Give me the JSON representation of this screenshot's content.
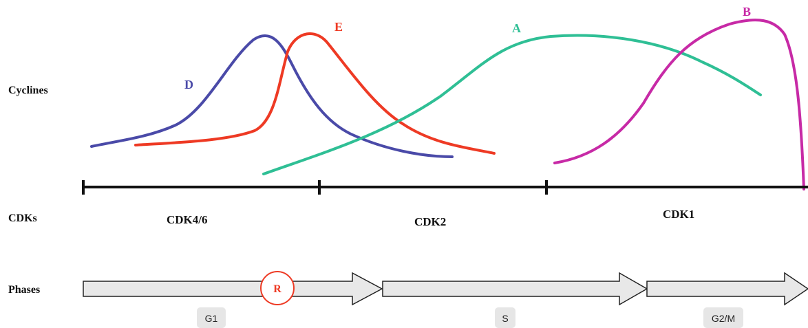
{
  "rows": {
    "cyclines": "Cyclines",
    "cdks": "CDKs",
    "phases": "Phases"
  },
  "cyclins": {
    "D": {
      "label": "D",
      "color": "#4a4aa8"
    },
    "E": {
      "label": "E",
      "color": "#ee3a24"
    },
    "A": {
      "label": "A",
      "color": "#2fbf95"
    },
    "B": {
      "label": "B",
      "color": "#c72aa6"
    }
  },
  "cdks": {
    "cdk46": "CDK4/6",
    "cdk2": "CDK2",
    "cdk1": "CDK1"
  },
  "checkpoint": {
    "label": "R",
    "color": "#ee3a24"
  },
  "phases": {
    "g1": "G1",
    "s": "S",
    "g2m": "G2/M"
  },
  "colors": {
    "timeline": "#111111",
    "arrow_fill": "#e8e8e8",
    "arrow_stroke": "#222222",
    "phase_box": "#e6e6e6"
  }
}
